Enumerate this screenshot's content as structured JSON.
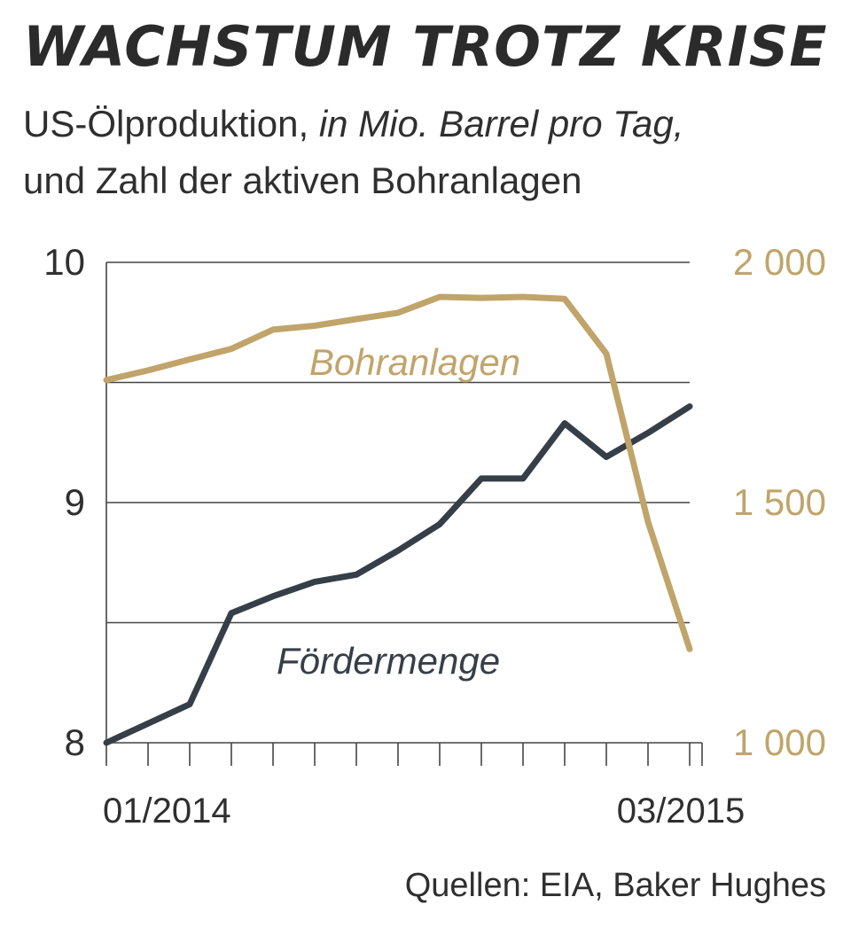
{
  "title": "WACHSTUM TROTZ KRISE",
  "subtitle": {
    "part1": "US-Ölproduktion, ",
    "unit": "in Mio. Barrel pro Tag,",
    "line2": "und Zahl der aktiven Bohranlagen"
  },
  "source": "Quellen: EIA, Baker Hughes",
  "colors": {
    "production": "#363f48",
    "rigs": "#c0a46a",
    "grid": "#444444",
    "text": "#2f2f2f"
  },
  "chart_data": {
    "type": "line",
    "x_tick_labels": [
      "01/2014",
      "03/2015"
    ],
    "x_tick_label_months": [
      "2014-01",
      "2015-03"
    ],
    "months": [
      "2014-01",
      "2014-02",
      "2014-03",
      "2014-04",
      "2014-05",
      "2014-06",
      "2014-07",
      "2014-08",
      "2014-09",
      "2014-10",
      "2014-11",
      "2014-12",
      "2015-01",
      "2015-02",
      "2015-03"
    ],
    "left_axis": {
      "ylim": [
        8,
        10
      ],
      "ticks": [
        "8",
        "9",
        "10"
      ]
    },
    "right_axis": {
      "ylim": [
        1000,
        2000
      ],
      "ticks": [
        "1 000",
        "1 500",
        "2 000"
      ]
    },
    "grid": true,
    "series": [
      {
        "name": "Fördermenge",
        "axis": "left",
        "values": [
          8.0,
          8.08,
          8.16,
          8.54,
          8.61,
          8.67,
          8.7,
          8.8,
          8.91,
          9.1,
          9.1,
          9.33,
          9.19,
          9.29,
          9.4
        ]
      },
      {
        "name": "Bohranlagen",
        "axis": "right",
        "values": [
          1755,
          1775,
          1798,
          1820,
          1860,
          1868,
          1882,
          1895,
          1928,
          1926,
          1928,
          1924,
          1810,
          1460,
          1195
        ]
      }
    ]
  }
}
